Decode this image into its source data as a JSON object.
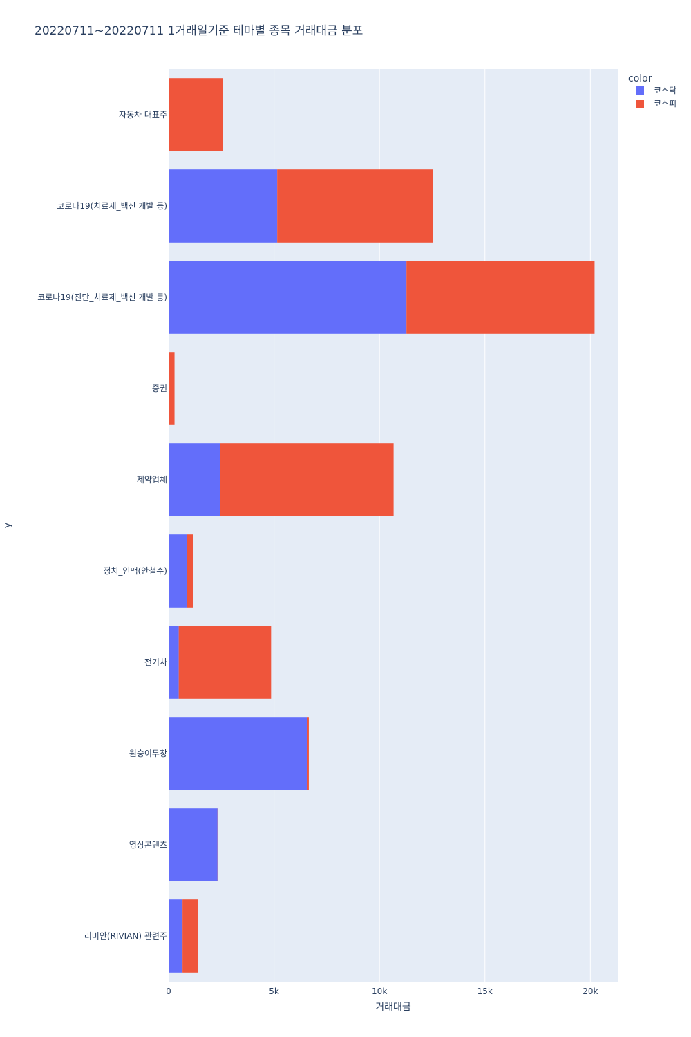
{
  "chart_data": {
    "type": "bar",
    "orientation": "horizontal",
    "stacked": true,
    "title": "20220711~20220711 1거래일기준 테마별 종목 거래대금 분포",
    "xlabel": "거래대금",
    "ylabel": "y",
    "xlim": [
      0,
      21300
    ],
    "x_ticks": [
      {
        "value": 0,
        "label": "0"
      },
      {
        "value": 5000,
        "label": "5k"
      },
      {
        "value": 10000,
        "label": "10k"
      },
      {
        "value": 15000,
        "label": "15k"
      },
      {
        "value": 20000,
        "label": "20k"
      }
    ],
    "categories": [
      "자동차 대표주",
      "코로나19(치료제_백신 개발 등)",
      "코로나19(진단_치료제_백신 개발 등)",
      "증권",
      "제약업체",
      "정치_인맥(안철수)",
      "전기차",
      "원숭이두창",
      "영상콘텐츠",
      "리비안(RIVIAN) 관련주"
    ],
    "series": [
      {
        "name": "코스닥",
        "color": "#636efa",
        "values": [
          0,
          5150,
          11280,
          0,
          2450,
          870,
          480,
          6580,
          2320,
          660
        ]
      },
      {
        "name": "코스피",
        "color": "#ef553b",
        "values": [
          2580,
          7380,
          8920,
          280,
          8220,
          300,
          4380,
          70,
          30,
          730
        ]
      }
    ],
    "legend": {
      "title": "color",
      "position": "top-right"
    },
    "grid": true,
    "plot_bg": "#e5ecf6",
    "grid_color": "#ffffff"
  }
}
